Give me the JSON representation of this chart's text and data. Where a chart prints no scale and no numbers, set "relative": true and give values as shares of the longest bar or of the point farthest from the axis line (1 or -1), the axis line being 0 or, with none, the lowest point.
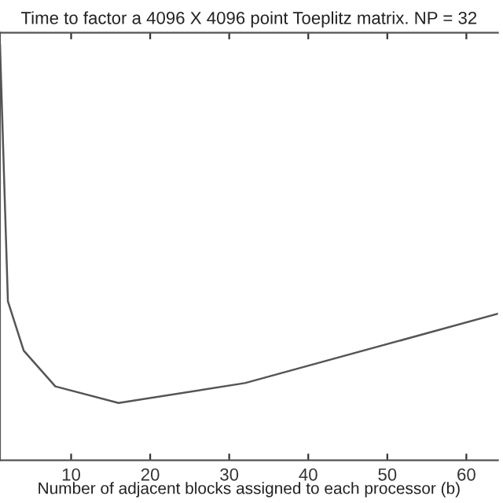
{
  "chart_data": {
    "type": "line",
    "title": "Time to factor a 4096 X 4096 point Toeplitz matrix. NP = 32",
    "xlabel": "Number of adjacent blocks assigned to each processor (b)",
    "relative": true,
    "x": [
      1,
      2,
      4,
      8,
      16,
      32,
      64
    ],
    "series": [
      {
        "color": "#555555",
        "values": [
          1,
          0.383,
          0.264,
          0.178,
          0.138,
          0.186,
          0.353
        ]
      }
    ],
    "xlim": [
      1,
      64
    ],
    "xticks": [
      10,
      20,
      30,
      40,
      50,
      60
    ],
    "grid": false,
    "legend": false,
    "marker": "none",
    "line_style": "solid"
  }
}
